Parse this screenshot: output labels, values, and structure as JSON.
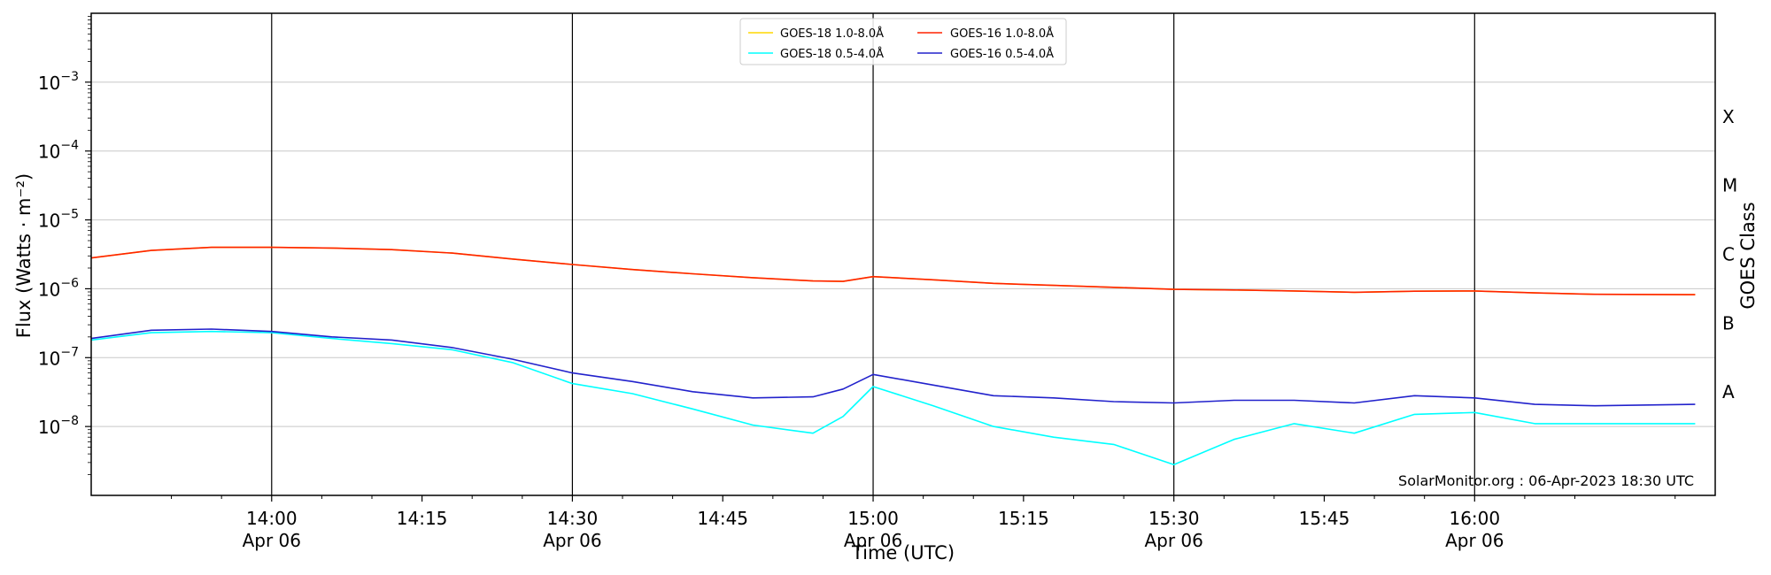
{
  "chart_data": {
    "type": "line",
    "xlabel": "Time (UTC)",
    "ylabel": "Flux (Watts · m⁻²)",
    "ylabel_right": "GOES Class",
    "y_scale": "log",
    "xlim": [
      "13:42",
      "16:24"
    ],
    "ylim": [
      1e-09,
      0.01
    ],
    "grid": "horizontal",
    "legend_position": "top-center",
    "x_ticks": [
      {
        "time": "14:00",
        "label": "14:00",
        "sublabel": "Apr 06"
      },
      {
        "time": "14:15",
        "label": "14:15",
        "sublabel": ""
      },
      {
        "time": "14:30",
        "label": "14:30",
        "sublabel": "Apr 06"
      },
      {
        "time": "14:45",
        "label": "14:45",
        "sublabel": ""
      },
      {
        "time": "15:00",
        "label": "15:00",
        "sublabel": "Apr 06"
      },
      {
        "time": "15:15",
        "label": "15:15",
        "sublabel": ""
      },
      {
        "time": "15:30",
        "label": "15:30",
        "sublabel": "Apr 06"
      },
      {
        "time": "15:45",
        "label": "15:45",
        "sublabel": ""
      },
      {
        "time": "16:00",
        "label": "16:00",
        "sublabel": "Apr 06"
      }
    ],
    "vlines": [
      "14:00",
      "14:30",
      "15:00",
      "15:30",
      "16:00"
    ],
    "y_ticks": [
      {
        "value": 1e-08,
        "base": "10",
        "exp": "−8"
      },
      {
        "value": 1e-07,
        "base": "10",
        "exp": "−7"
      },
      {
        "value": 1e-06,
        "base": "10",
        "exp": "−6"
      },
      {
        "value": 1e-05,
        "base": "10",
        "exp": "−5"
      },
      {
        "value": 0.0001,
        "base": "10",
        "exp": "−4"
      },
      {
        "value": 0.001,
        "base": "10",
        "exp": "−3"
      }
    ],
    "goes_classes": [
      {
        "label": "A",
        "value": 3.16e-08
      },
      {
        "label": "B",
        "value": 3.16e-07
      },
      {
        "label": "C",
        "value": 3.16e-06
      },
      {
        "label": "M",
        "value": 3.16e-05
      },
      {
        "label": "X",
        "value": 0.000316
      }
    ],
    "x": [
      "13:42",
      "13:48",
      "13:54",
      "14:00",
      "14:06",
      "14:12",
      "14:18",
      "14:24",
      "14:30",
      "14:36",
      "14:42",
      "14:48",
      "14:54",
      "14:57",
      "15:00",
      "15:06",
      "15:12",
      "15:18",
      "15:24",
      "15:30",
      "15:36",
      "15:42",
      "15:48",
      "15:54",
      "16:00",
      "16:06",
      "16:12",
      "16:22"
    ],
    "series": [
      {
        "name": "GOES-18 1.0-8.0Å",
        "color": "#ffd700",
        "values": [
          2.8e-06,
          3.6e-06,
          4e-06,
          4e-06,
          3.9e-06,
          3.7e-06,
          3.3e-06,
          2.7e-06,
          2.25e-06,
          1.9e-06,
          1.65e-06,
          1.45e-06,
          1.3e-06,
          1.28e-06,
          1.5e-06,
          1.35e-06,
          1.2e-06,
          1.12e-06,
          1.05e-06,
          9.8e-07,
          9.6e-07,
          9.3e-07,
          8.9e-07,
          9.2e-07,
          9.3e-07,
          8.7e-07,
          8.3e-07,
          8.2e-07
        ]
      },
      {
        "name": "GOES-18 0.5-4.0Å",
        "color": "#00ffff",
        "values": [
          1.8e-07,
          2.3e-07,
          2.4e-07,
          2.3e-07,
          1.9e-07,
          1.6e-07,
          1.3e-07,
          8.5e-08,
          4.2e-08,
          3e-08,
          1.8e-08,
          1.05e-08,
          8e-09,
          1.4e-08,
          3.8e-08,
          2e-08,
          1e-08,
          7e-09,
          5.5e-09,
          2.8e-09,
          6.5e-09,
          1.1e-08,
          8e-09,
          1.5e-08,
          1.6e-08,
          1.1e-08,
          1.1e-08,
          1.1e-08
        ]
      },
      {
        "name": "GOES-16 1.0-8.0Å",
        "color": "#ff2200",
        "values": [
          2.8e-06,
          3.6e-06,
          4e-06,
          4e-06,
          3.9e-06,
          3.7e-06,
          3.3e-06,
          2.7e-06,
          2.25e-06,
          1.9e-06,
          1.65e-06,
          1.45e-06,
          1.3e-06,
          1.28e-06,
          1.5e-06,
          1.35e-06,
          1.2e-06,
          1.12e-06,
          1.05e-06,
          9.8e-07,
          9.6e-07,
          9.3e-07,
          8.9e-07,
          9.2e-07,
          9.3e-07,
          8.7e-07,
          8.3e-07,
          8.2e-07
        ]
      },
      {
        "name": "GOES-16 0.5-4.0Å",
        "color": "#2222cc",
        "values": [
          1.9e-07,
          2.5e-07,
          2.6e-07,
          2.4e-07,
          2e-07,
          1.8e-07,
          1.4e-07,
          9.5e-08,
          6e-08,
          4.5e-08,
          3.2e-08,
          2.6e-08,
          2.7e-08,
          3.5e-08,
          5.7e-08,
          4e-08,
          2.8e-08,
          2.6e-08,
          2.3e-08,
          2.2e-08,
          2.4e-08,
          2.4e-08,
          2.2e-08,
          2.8e-08,
          2.6e-08,
          2.1e-08,
          2e-08,
          2.1e-08
        ]
      }
    ],
    "credit": "SolarMonitor.org : 06-Apr-2023 18:30 UTC"
  }
}
